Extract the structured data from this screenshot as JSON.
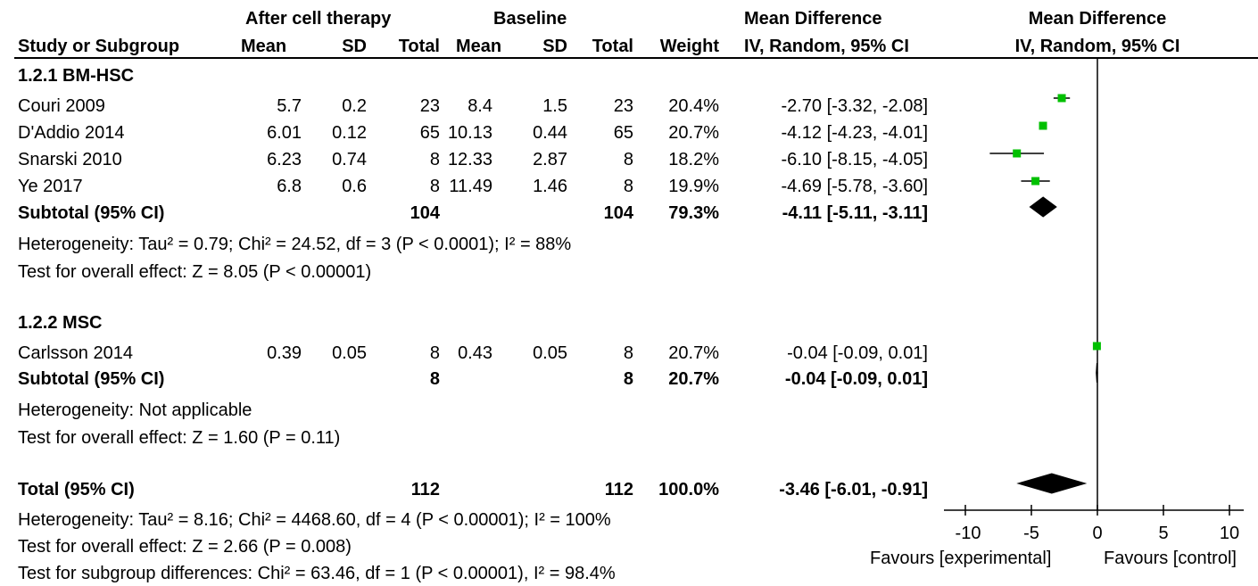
{
  "header": {
    "group1": "After cell therapy",
    "group2": "Baseline",
    "md_title": "Mean Difference",
    "md_sub": "IV, Random, 95% CI",
    "plot_title": "Mean Difference",
    "plot_sub": "IV, Random, 95% CI",
    "study": "Study or Subgroup",
    "mean1": "Mean",
    "sd1": "SD",
    "total1": "Total",
    "mean2": "Mean",
    "sd2": "SD",
    "total2": "Total",
    "weight": "Weight"
  },
  "subgroups": [
    {
      "label": "1.2.1 BM-HSC",
      "studies": [
        {
          "name": "Couri 2009",
          "mean1": "5.7",
          "sd1": "0.2",
          "total1": "23",
          "mean2": "8.4",
          "sd2": "1.5",
          "total2": "23",
          "weight": "20.4%",
          "ci": "-2.70 [-3.32, -2.08]"
        },
        {
          "name": "D'Addio 2014",
          "mean1": "6.01",
          "sd1": "0.12",
          "total1": "65",
          "mean2": "10.13",
          "sd2": "0.44",
          "total2": "65",
          "weight": "20.7%",
          "ci": "-4.12 [-4.23, -4.01]"
        },
        {
          "name": "Snarski 2010",
          "mean1": "6.23",
          "sd1": "0.74",
          "total1": "8",
          "mean2": "12.33",
          "sd2": "2.87",
          "total2": "8",
          "weight": "18.2%",
          "ci": "-6.10 [-8.15, -4.05]"
        },
        {
          "name": "Ye 2017",
          "mean1": "6.8",
          "sd1": "0.6",
          "total1": "8",
          "mean2": "11.49",
          "sd2": "1.46",
          "total2": "8",
          "weight": "19.9%",
          "ci": "-4.69 [-5.78, -3.60]"
        }
      ],
      "subtotal": {
        "label": "Subtotal (95% CI)",
        "total1": "104",
        "total2": "104",
        "weight": "79.3%",
        "ci": "-4.11 [-5.11, -3.11]"
      },
      "heterogeneity": "Heterogeneity: Tau² = 0.79; Chi² = 24.52, df = 3 (P < 0.0001); I² = 88%",
      "overall": "Test for overall effect: Z = 8.05 (P < 0.00001)"
    },
    {
      "label": "1.2.2 MSC",
      "studies": [
        {
          "name": "Carlsson 2014",
          "mean1": "0.39",
          "sd1": "0.05",
          "total1": "8",
          "mean2": "0.43",
          "sd2": "0.05",
          "total2": "8",
          "weight": "20.7%",
          "ci": "-0.04 [-0.09, 0.01]"
        }
      ],
      "subtotal": {
        "label": "Subtotal (95% CI)",
        "total1": "8",
        "total2": "8",
        "weight": "20.7%",
        "ci": "-0.04 [-0.09, 0.01]"
      },
      "heterogeneity": "Heterogeneity: Not applicable",
      "overall": "Test for overall effect: Z = 1.60 (P = 0.11)"
    }
  ],
  "total": {
    "label": "Total (95% CI)",
    "total1": "112",
    "total2": "112",
    "weight": "100.0%",
    "ci": "-3.46 [-6.01, -0.91]"
  },
  "total_heterogeneity": "Heterogeneity: Tau² = 8.16; Chi² = 4468.60, df = 4 (P < 0.00001); I² = 100%",
  "total_overall": "Test for overall effect: Z = 2.66 (P = 0.008)",
  "subgroup_diff": "Test for subgroup differences: Chi² = 63.46, df = 1 (P < 0.00001), I² = 98.4%",
  "axis": {
    "ticks": [
      "-10",
      "-5",
      "0",
      "5",
      "10"
    ],
    "left_label": "Favours [experimental]",
    "right_label": "Favours [control]"
  },
  "chart_data": {
    "type": "scatter",
    "xlim": [
      -10,
      10
    ],
    "x_ticks": [
      -10,
      -5,
      0,
      5,
      10
    ],
    "null_line": 0,
    "marker_color": "#00c000",
    "studies": [
      {
        "name": "Couri 2009",
        "est": -2.7,
        "lo": -3.32,
        "hi": -2.08
      },
      {
        "name": "D'Addio 2014",
        "est": -4.12,
        "lo": -4.23,
        "hi": -4.01
      },
      {
        "name": "Snarski 2010",
        "est": -6.1,
        "lo": -8.15,
        "hi": -4.05
      },
      {
        "name": "Ye 2017",
        "est": -4.69,
        "lo": -5.78,
        "hi": -3.6
      },
      {
        "name": "Carlsson 2014",
        "est": -0.04,
        "lo": -0.09,
        "hi": 0.01
      }
    ],
    "diamonds": [
      {
        "name": "Subtotal 1.2.1 BM-HSC",
        "est": -4.11,
        "lo": -5.11,
        "hi": -3.11
      },
      {
        "name": "Subtotal 1.2.2 MSC",
        "est": -0.04,
        "lo": -0.09,
        "hi": 0.01
      },
      {
        "name": "Total",
        "est": -3.46,
        "lo": -6.01,
        "hi": -0.91
      }
    ]
  }
}
